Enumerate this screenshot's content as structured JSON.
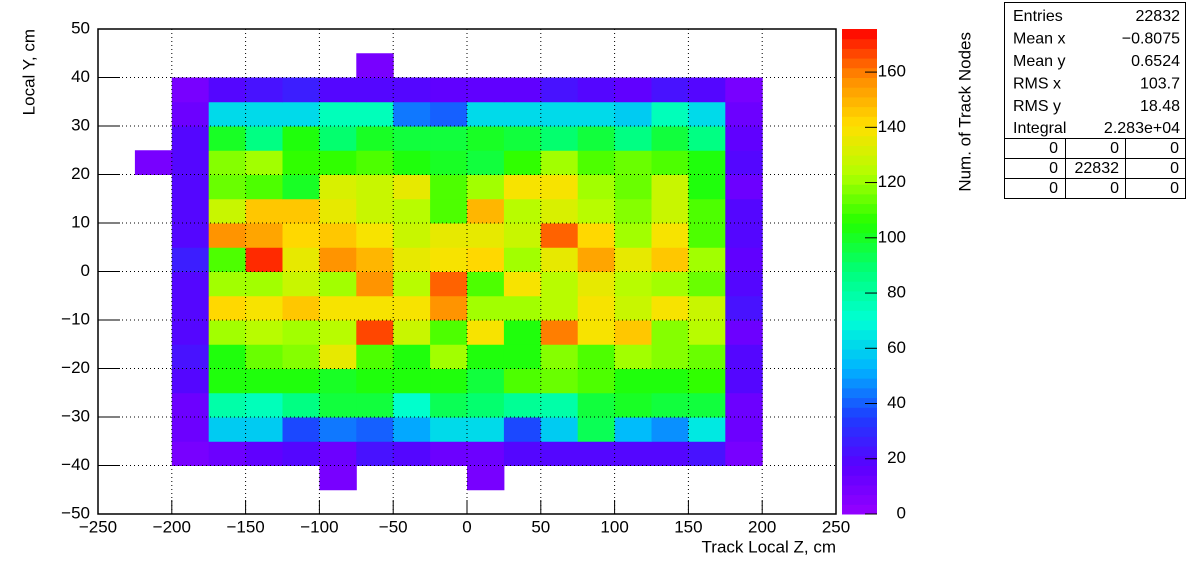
{
  "chart_data": {
    "type": "heatmap",
    "x_label": "Track Local Z, cm",
    "y_label": "Local Y, cm",
    "z_label": "Num. of Track Nodes",
    "xbins": [
      -225,
      -200,
      -175,
      -150,
      -125,
      -100,
      -75,
      -50,
      -25,
      0,
      25,
      50,
      75,
      100,
      125,
      150,
      175,
      200
    ],
    "ybins": [
      -45,
      -40,
      -35,
      -30,
      -25,
      -20,
      -15,
      -10,
      -5,
      0,
      5,
      10,
      15,
      20,
      25,
      30,
      35,
      40,
      45
    ],
    "z": [
      [
        null,
        null,
        null,
        null,
        null,
        8,
        null,
        null,
        null,
        8,
        null,
        null,
        null,
        null,
        null,
        null,
        null
      ],
      [
        null,
        10,
        14,
        16,
        18,
        14,
        22,
        18,
        14,
        14,
        18,
        20,
        20,
        18,
        18,
        22,
        8
      ],
      [
        null,
        12,
        58,
        58,
        38,
        44,
        42,
        52,
        60,
        62,
        38,
        58,
        92,
        55,
        48,
        65,
        12
      ],
      [
        null,
        12,
        78,
        75,
        85,
        95,
        95,
        72,
        92,
        88,
        82,
        78,
        95,
        100,
        98,
        95,
        12
      ],
      [
        null,
        20,
        102,
        102,
        102,
        100,
        102,
        105,
        102,
        95,
        110,
        115,
        112,
        105,
        103,
        108,
        18
      ],
      [
        null,
        22,
        102,
        115,
        118,
        135,
        110,
        102,
        120,
        102,
        105,
        118,
        110,
        120,
        118,
        115,
        20
      ],
      [
        null,
        20,
        120,
        125,
        120,
        125,
        168,
        128,
        112,
        138,
        102,
        160,
        138,
        145,
        118,
        125,
        14
      ],
      [
        null,
        20,
        142,
        140,
        145,
        140,
        140,
        140,
        155,
        120,
        120,
        125,
        138,
        128,
        138,
        128,
        22
      ],
      [
        null,
        20,
        122,
        120,
        128,
        122,
        155,
        125,
        162,
        110,
        138,
        125,
        135,
        125,
        122,
        115,
        18
      ],
      [
        null,
        28,
        112,
        172,
        135,
        155,
        148,
        135,
        140,
        142,
        122,
        135,
        152,
        135,
        145,
        120,
        16
      ],
      [
        null,
        20,
        158,
        153,
        142,
        145,
        140,
        128,
        135,
        135,
        128,
        162,
        143,
        120,
        140,
        112,
        18
      ],
      [
        null,
        20,
        128,
        145,
        145,
        135,
        128,
        125,
        112,
        150,
        125,
        130,
        125,
        118,
        128,
        110,
        18
      ],
      [
        null,
        20,
        115,
        112,
        100,
        130,
        128,
        135,
        112,
        120,
        140,
        138,
        120,
        115,
        128,
        102,
        14
      ],
      [
        8,
        18,
        118,
        120,
        108,
        108,
        112,
        102,
        100,
        98,
        106,
        120,
        110,
        115,
        112,
        105,
        18
      ],
      [
        null,
        20,
        100,
        85,
        105,
        88,
        100,
        98,
        95,
        100,
        95,
        88,
        95,
        85,
        95,
        85,
        16
      ],
      [
        null,
        14,
        62,
        62,
        60,
        75,
        75,
        45,
        40,
        62,
        62,
        62,
        62,
        58,
        76,
        62,
        14
      ],
      [
        null,
        10,
        20,
        22,
        28,
        20,
        18,
        20,
        16,
        16,
        16,
        22,
        20,
        16,
        24,
        20,
        8
      ],
      [
        null,
        null,
        null,
        null,
        null,
        null,
        8,
        null,
        null,
        null,
        null,
        null,
        null,
        null,
        null,
        null,
        null
      ]
    ],
    "xlim": [
      -250,
      250
    ],
    "ylim": [
      -50,
      50
    ],
    "zlim": [
      0,
      175.6
    ],
    "xticks": [
      {
        "value": -250,
        "label": "−250"
      },
      {
        "value": -200,
        "label": "−200"
      },
      {
        "value": -150,
        "label": "−150"
      },
      {
        "value": -100,
        "label": "−100"
      },
      {
        "value": -50,
        "label": "−50"
      },
      0,
      50,
      100,
      150,
      200,
      250
    ],
    "yticks": [
      {
        "value": -50,
        "label": "−50"
      },
      {
        "value": -40,
        "label": "−40"
      },
      {
        "value": -30,
        "label": "−30"
      },
      {
        "value": -20,
        "label": "−20"
      },
      {
        "value": -10,
        "label": "−10"
      },
      0,
      10,
      20,
      30,
      40,
      50
    ],
    "zticks": [
      0,
      20,
      40,
      60,
      80,
      100,
      120,
      140,
      160
    ],
    "grid": true,
    "ncolors": 50,
    "palette": [
      "#9600ff",
      "#5a00ff",
      "#1e3cff",
      "#00b4ff",
      "#00ffd5",
      "#00ff7a",
      "#22ff00",
      "#b0ff00",
      "#ffe000",
      "#ff8c00",
      "#ff0000"
    ],
    "stats": {
      "rows": [
        [
          "Entries",
          "22832"
        ],
        [
          "Mean x",
          "−0.8075"
        ],
        [
          "Mean y",
          "0.6524"
        ],
        [
          "RMS x",
          "103.7"
        ],
        [
          "RMS y",
          "18.48"
        ],
        [
          "Integral",
          "2.283e+04"
        ]
      ],
      "grid": [
        [
          "0",
          "0",
          "0"
        ],
        [
          "0",
          "22832",
          "0"
        ],
        [
          "0",
          "0",
          "0"
        ]
      ]
    }
  }
}
